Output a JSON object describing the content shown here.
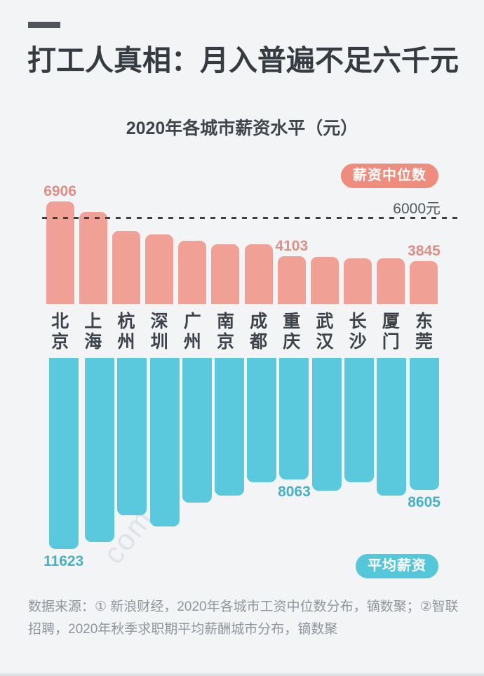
{
  "page": {
    "title": "打工人真相：月入普遍不足六千元",
    "subtitle": "2020年各城市薪资水平（元）",
    "source_note": "数据来源：① 新浪财经，2020年各城市工资中位数分布，镝数聚；②智联招聘，2020年秋季求职期平均薪酬城市分布，镝数聚",
    "watermark": "com"
  },
  "colors": {
    "background": "#F3F4F6",
    "title_text": "#363B42",
    "median_bar": "#F0A094",
    "median_badge": "#EE8C7D",
    "median_value_text": "#DE8E84",
    "average_bar": "#5AC8DD",
    "average_badge": "#55C7DB",
    "average_value_text": "#47B1C4",
    "city_text": "#3E434A",
    "reference_line": "#3B4046",
    "source_text": "#8F959E"
  },
  "chart_data": {
    "type": "bar",
    "title": "2020年各城市薪资水平（元）",
    "categories": [
      "北京",
      "上海",
      "杭州",
      "深圳",
      "广州",
      "南京",
      "成都",
      "重庆",
      "武汉",
      "长沙",
      "厦门",
      "东莞"
    ],
    "series": [
      {
        "name": "薪资中位数",
        "direction": "up",
        "values": [
          6906,
          6370,
          5400,
          5200,
          4900,
          4700,
          4700,
          4103,
          4050,
          4000,
          4000,
          3845
        ],
        "value_labels": [
          "6906",
          null,
          null,
          null,
          null,
          null,
          null,
          "4103",
          null,
          null,
          null,
          "3845"
        ],
        "note": "unlabeled values estimated from bar heights"
      },
      {
        "name": "平均薪资",
        "direction": "down",
        "values": [
          11623,
          11250,
          9900,
          10450,
          9250,
          8900,
          8200,
          8063,
          8650,
          8200,
          8900,
          8605
        ],
        "value_labels": [
          "11623",
          null,
          null,
          null,
          null,
          null,
          null,
          "8063",
          null,
          null,
          null,
          "8605"
        ],
        "note": "unlabeled values estimated from bar heights"
      }
    ],
    "reference_line": {
      "value": 6000,
      "label": "6000元",
      "style": "dashed"
    },
    "legend": {
      "median": "薪资中位数",
      "average": "平均薪资"
    },
    "grid": false,
    "unit": "元"
  }
}
